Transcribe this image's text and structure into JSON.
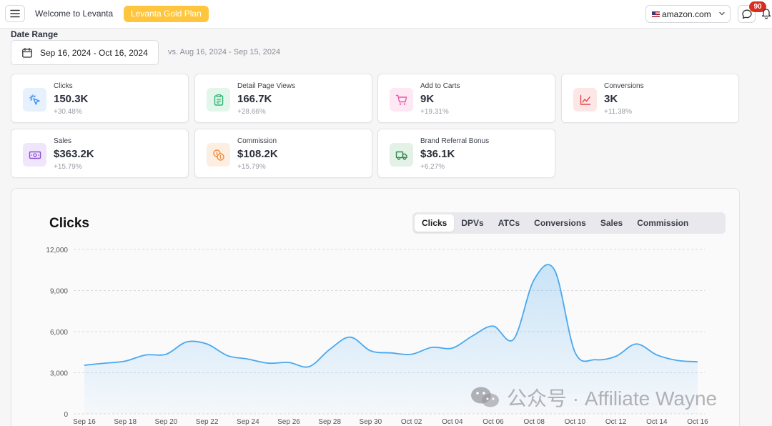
{
  "header": {
    "welcome_text": "Welcome to Levanta",
    "plan_badge": "Levanta Gold Plan",
    "marketplace": "amazon.com",
    "notification_count": "90"
  },
  "date_range": {
    "label": "Date Range",
    "value": "Sep 16, 2024 - Oct 16, 2024",
    "compare": "vs. Aug 16, 2024 - Sep 15, 2024"
  },
  "metrics": [
    {
      "label": "Clicks",
      "value": "150.3K",
      "change": "+30.48%",
      "icon": "cursor-click-icon",
      "color": "#3b8ef0",
      "bg": "#e6f1fd"
    },
    {
      "label": "Detail Page Views",
      "value": "166.7K",
      "change": "+28.66%",
      "icon": "clipboard-icon",
      "color": "#2fb372",
      "bg": "#e3f6ec"
    },
    {
      "label": "Add to Carts",
      "value": "9K",
      "change": "+19.31%",
      "icon": "cart-icon",
      "color": "#e85ba8",
      "bg": "#fde8f3"
    },
    {
      "label": "Conversions",
      "value": "3K",
      "change": "+11.38%",
      "icon": "trend-chart-icon",
      "color": "#e5484d",
      "bg": "#fde6e6"
    },
    {
      "label": "Sales",
      "value": "$363.2K",
      "change": "+15.79%",
      "icon": "cash-icon",
      "color": "#8a4fd1",
      "bg": "#efe6fb"
    },
    {
      "label": "Commission",
      "value": "$108.2K",
      "change": "+15.79%",
      "icon": "coins-icon",
      "color": "#f28b3c",
      "bg": "#fdeee2"
    },
    {
      "label": "Brand Referral Bonus",
      "value": "$36.1K",
      "change": "+6.27%",
      "icon": "truck-icon",
      "color": "#2f8a4e",
      "bg": "#e3f1e7"
    }
  ],
  "chart_section": {
    "title": "Clicks",
    "tabs": [
      "Clicks",
      "DPVs",
      "ATCs",
      "Conversions",
      "Sales",
      "Commission"
    ],
    "active_tab": "Clicks"
  },
  "chart_data": {
    "type": "area",
    "title": "Clicks",
    "x_tick_labels": [
      "Sep 16",
      "Sep 18",
      "Sep 20",
      "Sep 22",
      "Sep 24",
      "Sep 26",
      "Sep 28",
      "Sep 30",
      "Oct 02",
      "Oct 04",
      "Oct 06",
      "Oct 08",
      "Oct 10",
      "Oct 12",
      "Oct 14",
      "Oct 16"
    ],
    "y_ticks": [
      "0",
      "3,000",
      "6,000",
      "9,000",
      "12,000"
    ],
    "ylim": [
      0,
      12000
    ],
    "grid": true,
    "color": "#4aa8ee",
    "series": [
      {
        "x": [
          "Sep 16",
          "Sep 17",
          "Sep 18",
          "Sep 19",
          "Sep 20",
          "Sep 21",
          "Sep 22",
          "Sep 23",
          "Sep 24",
          "Sep 25",
          "Sep 26",
          "Sep 27",
          "Sep 28",
          "Sep 29",
          "Sep 30",
          "Oct 01",
          "Oct 02",
          "Oct 03",
          "Oct 04",
          "Oct 05",
          "Oct 06",
          "Oct 07",
          "Oct 08",
          "Oct 09",
          "Oct 10",
          "Oct 11",
          "Oct 12",
          "Oct 13",
          "Oct 14",
          "Oct 15",
          "Oct 16"
        ],
        "values": [
          3550,
          3700,
          3850,
          4300,
          4350,
          5250,
          5100,
          4250,
          4000,
          3700,
          3750,
          3450,
          4700,
          5600,
          4600,
          4450,
          4350,
          4850,
          4800,
          5700,
          6400,
          5450,
          9800,
          10500,
          4500,
          3950,
          4200,
          5100,
          4300,
          3900,
          3800
        ]
      }
    ]
  },
  "watermark": "公众号 · Affiliate Wayne"
}
